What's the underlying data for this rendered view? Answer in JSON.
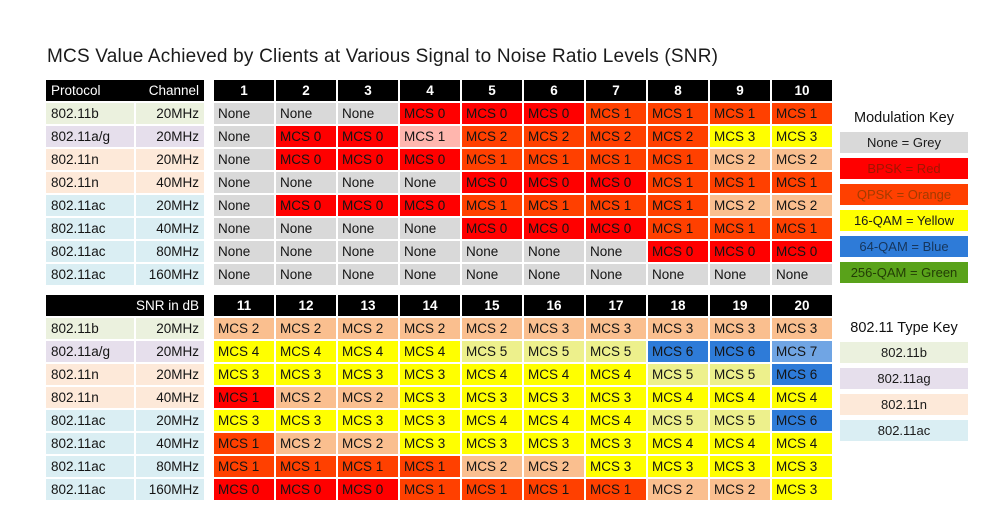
{
  "title": "MCS Value Achieved by Clients at Various Signal to Noise Ratio Levels (SNR)",
  "colors": {
    "grey": "#D9D9D9",
    "red": "#FF0000",
    "pink": "#FFB6AE",
    "orangered": "#FF4000",
    "peach": "#FABF8F",
    "yellow": "#FFFF00",
    "paleyellow": "#EDF08C",
    "blue": "#2E7BD8",
    "lightblue": "#70A5E4",
    "green": "#59A21A",
    "rowb": "#EBF1DE",
    "rowag": "#E6DFEC",
    "rown": "#FDE9D9",
    "rowac": "#DAEEF3",
    "header_bg": "#000000",
    "header_text": "#FFFFFF"
  },
  "chart_data": [
    {
      "type": "heatmap",
      "title": "MCS Value Achieved by Clients at Various Signal to Noise Ratio Levels (SNR)",
      "header_left": "Protocol",
      "header_right": "Channel",
      "columns": [
        "1",
        "2",
        "3",
        "4",
        "5",
        "6",
        "7",
        "8",
        "9",
        "10"
      ],
      "rows": [
        {
          "protocol": "802.11b",
          "channel": "20MHz",
          "type_color": "rowb",
          "values": [
            "None",
            "None",
            "None",
            "MCS 0",
            "MCS 0",
            "MCS 0",
            "MCS 1",
            "MCS 1",
            "MCS 1",
            "MCS 1"
          ],
          "colors": [
            "grey",
            "grey",
            "grey",
            "red",
            "red",
            "red",
            "orangered",
            "orangered",
            "orangered",
            "orangered"
          ]
        },
        {
          "protocol": "802.11a/g",
          "channel": "20MHz",
          "type_color": "rowag",
          "values": [
            "None",
            "MCS 0",
            "MCS 0",
            "MCS 1",
            "MCS 2",
            "MCS 2",
            "MCS 2",
            "MCS 2",
            "MCS 3",
            "MCS 3"
          ],
          "colors": [
            "grey",
            "red",
            "red",
            "pink",
            "orangered",
            "orangered",
            "orangered",
            "orangered",
            "yellow",
            "yellow"
          ]
        },
        {
          "protocol": "802.11n",
          "channel": "20MHz",
          "type_color": "rown",
          "values": [
            "None",
            "MCS 0",
            "MCS 0",
            "MCS 0",
            "MCS 1",
            "MCS 1",
            "MCS 1",
            "MCS 1",
            "MCS 2",
            "MCS 2"
          ],
          "colors": [
            "grey",
            "red",
            "red",
            "red",
            "orangered",
            "orangered",
            "orangered",
            "orangered",
            "peach",
            "peach"
          ]
        },
        {
          "protocol": "802.11n",
          "channel": "40MHz",
          "type_color": "rown",
          "values": [
            "None",
            "None",
            "None",
            "None",
            "MCS 0",
            "MCS 0",
            "MCS 0",
            "MCS 1",
            "MCS 1",
            "MCS 1"
          ],
          "colors": [
            "grey",
            "grey",
            "grey",
            "grey",
            "red",
            "red",
            "red",
            "orangered",
            "orangered",
            "orangered"
          ]
        },
        {
          "protocol": "802.11ac",
          "channel": "20MHz",
          "type_color": "rowac",
          "values": [
            "None",
            "MCS 0",
            "MCS 0",
            "MCS 0",
            "MCS 1",
            "MCS 1",
            "MCS 1",
            "MCS 1",
            "MCS 2",
            "MCS 2"
          ],
          "colors": [
            "grey",
            "red",
            "red",
            "red",
            "orangered",
            "orangered",
            "orangered",
            "orangered",
            "peach",
            "peach"
          ]
        },
        {
          "protocol": "802.11ac",
          "channel": "40MHz",
          "type_color": "rowac",
          "values": [
            "None",
            "None",
            "None",
            "None",
            "MCS 0",
            "MCS 0",
            "MCS 0",
            "MCS 1",
            "MCS 1",
            "MCS 1"
          ],
          "colors": [
            "grey",
            "grey",
            "grey",
            "grey",
            "red",
            "red",
            "red",
            "orangered",
            "orangered",
            "orangered"
          ]
        },
        {
          "protocol": "802.11ac",
          "channel": "80MHz",
          "type_color": "rowac",
          "values": [
            "None",
            "None",
            "None",
            "None",
            "None",
            "None",
            "None",
            "MCS 0",
            "MCS 0",
            "MCS 0"
          ],
          "colors": [
            "grey",
            "grey",
            "grey",
            "grey",
            "grey",
            "grey",
            "grey",
            "red",
            "red",
            "red"
          ]
        },
        {
          "protocol": "802.11ac",
          "channel": "160MHz",
          "type_color": "rowac",
          "values": [
            "None",
            "None",
            "None",
            "None",
            "None",
            "None",
            "None",
            "None",
            "None",
            "None"
          ],
          "colors": [
            "grey",
            "grey",
            "grey",
            "grey",
            "grey",
            "grey",
            "grey",
            "grey",
            "grey",
            "grey"
          ]
        }
      ]
    },
    {
      "type": "heatmap",
      "header_left": "",
      "header_right": "SNR in dB",
      "columns": [
        "11",
        "12",
        "13",
        "14",
        "15",
        "16",
        "17",
        "18",
        "19",
        "20"
      ],
      "rows": [
        {
          "protocol": "802.11b",
          "channel": "20MHz",
          "type_color": "rowb",
          "values": [
            "MCS 2",
            "MCS 2",
            "MCS 2",
            "MCS 2",
            "MCS 2",
            "MCS 3",
            "MCS 3",
            "MCS 3",
            "MCS 3",
            "MCS 3"
          ],
          "colors": [
            "peach",
            "peach",
            "peach",
            "peach",
            "peach",
            "peach",
            "peach",
            "peach",
            "peach",
            "peach"
          ]
        },
        {
          "protocol": "802.11a/g",
          "channel": "20MHz",
          "type_color": "rowag",
          "values": [
            "MCS 4",
            "MCS 4",
            "MCS 4",
            "MCS 4",
            "MCS 5",
            "MCS 5",
            "MCS 5",
            "MCS 6",
            "MCS 6",
            "MCS 7"
          ],
          "colors": [
            "yellow",
            "yellow",
            "yellow",
            "yellow",
            "paleyellow",
            "paleyellow",
            "paleyellow",
            "blue",
            "blue",
            "lightblue"
          ]
        },
        {
          "protocol": "802.11n",
          "channel": "20MHz",
          "type_color": "rown",
          "values": [
            "MCS 3",
            "MCS 3",
            "MCS 3",
            "MCS 3",
            "MCS 4",
            "MCS 4",
            "MCS 4",
            "MCS 5",
            "MCS 5",
            "MCS 6"
          ],
          "colors": [
            "yellow",
            "yellow",
            "yellow",
            "yellow",
            "yellow",
            "yellow",
            "yellow",
            "paleyellow",
            "paleyellow",
            "blue"
          ]
        },
        {
          "protocol": "802.11n",
          "channel": "40MHz",
          "type_color": "rown",
          "values": [
            "MCS 1",
            "MCS 2",
            "MCS 2",
            "MCS 3",
            "MCS 3",
            "MCS 3",
            "MCS 3",
            "MCS 4",
            "MCS 4",
            "MCS 4"
          ],
          "colors": [
            "red",
            "peach",
            "peach",
            "yellow",
            "yellow",
            "yellow",
            "yellow",
            "yellow",
            "yellow",
            "yellow"
          ]
        },
        {
          "protocol": "802.11ac",
          "channel": "20MHz",
          "type_color": "rowac",
          "values": [
            "MCS 3",
            "MCS 3",
            "MCS 3",
            "MCS 3",
            "MCS 4",
            "MCS 4",
            "MCS 4",
            "MCS 5",
            "MCS 5",
            "MCS 6"
          ],
          "colors": [
            "yellow",
            "yellow",
            "yellow",
            "yellow",
            "yellow",
            "yellow",
            "yellow",
            "paleyellow",
            "paleyellow",
            "blue"
          ]
        },
        {
          "protocol": "802.11ac",
          "channel": "40MHz",
          "type_color": "rowac",
          "values": [
            "MCS 1",
            "MCS 2",
            "MCS 2",
            "MCS 3",
            "MCS 3",
            "MCS 3",
            "MCS 3",
            "MCS 4",
            "MCS 4",
            "MCS 4"
          ],
          "colors": [
            "orangered",
            "peach",
            "peach",
            "yellow",
            "yellow",
            "yellow",
            "yellow",
            "yellow",
            "yellow",
            "yellow"
          ]
        },
        {
          "protocol": "802.11ac",
          "channel": "80MHz",
          "type_color": "rowac",
          "values": [
            "MCS 1",
            "MCS 1",
            "MCS 1",
            "MCS 1",
            "MCS 2",
            "MCS 2",
            "MCS 3",
            "MCS 3",
            "MCS 3",
            "MCS 3"
          ],
          "colors": [
            "orangered",
            "orangered",
            "orangered",
            "orangered",
            "peach",
            "peach",
            "yellow",
            "yellow",
            "yellow",
            "yellow"
          ]
        },
        {
          "protocol": "802.11ac",
          "channel": "160MHz",
          "type_color": "rowac",
          "values": [
            "MCS 0",
            "MCS 0",
            "MCS 0",
            "MCS 1",
            "MCS 1",
            "MCS 1",
            "MCS 1",
            "MCS 2",
            "MCS 2",
            "MCS 3"
          ],
          "colors": [
            "red",
            "red",
            "red",
            "orangered",
            "orangered",
            "orangered",
            "orangered",
            "peach",
            "peach",
            "yellow"
          ]
        }
      ]
    }
  ],
  "modulation_key": {
    "title": "Modulation Key",
    "items": [
      {
        "label": "None = Grey",
        "color": "grey",
        "text": "#1a1a1a"
      },
      {
        "label": "BPSK = Red",
        "color": "red",
        "text": "#9e1600"
      },
      {
        "label": "QPSK = Orange",
        "color": "orangered",
        "text": "#a33b00"
      },
      {
        "label": "16-QAM = Yellow",
        "color": "yellow",
        "text": "#1a1a1a"
      },
      {
        "label": "64-QAM = Blue",
        "color": "blue",
        "text": "#16365c"
      },
      {
        "label": "256-QAM = Green",
        "color": "green",
        "text": "#233d06"
      }
    ]
  },
  "type_key": {
    "title": "802.11 Type Key",
    "items": [
      {
        "label": "802.11b",
        "color": "rowb",
        "text": "#1a1a1a"
      },
      {
        "label": "802.11ag",
        "color": "rowag",
        "text": "#1a1a1a"
      },
      {
        "label": "802.11n",
        "color": "rown",
        "text": "#1a1a1a"
      },
      {
        "label": "802.11ac",
        "color": "rowac",
        "text": "#1a1a1a"
      }
    ]
  }
}
